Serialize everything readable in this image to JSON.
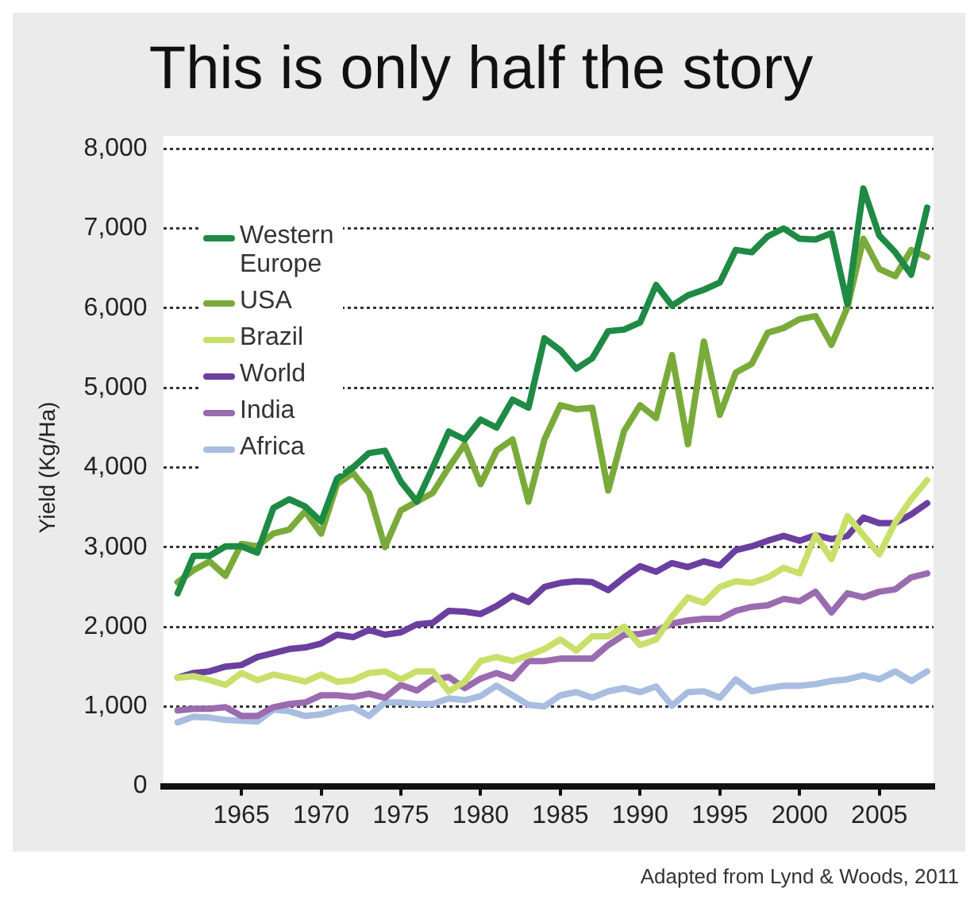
{
  "chart_data": {
    "type": "line",
    "title": "This is only half the story",
    "ylabel": "Yield (Kg/Ha)",
    "annotations": [
      "Adapted from Lynd & Woods, 2011"
    ],
    "x": [
      1961,
      1962,
      1963,
      1964,
      1965,
      1966,
      1967,
      1968,
      1969,
      1970,
      1971,
      1972,
      1973,
      1974,
      1975,
      1976,
      1977,
      1978,
      1979,
      1980,
      1981,
      1982,
      1983,
      1984,
      1985,
      1986,
      1987,
      1988,
      1989,
      1990,
      1991,
      1992,
      1993,
      1994,
      1995,
      1996,
      1997,
      1998,
      1999,
      2000,
      2001,
      2002,
      2003,
      2004,
      2005,
      2006,
      2007,
      2008
    ],
    "series": [
      {
        "name": "Western Europe",
        "color": "#1e8a44",
        "values": [
          2420,
          2890,
          2890,
          3010,
          3010,
          2930,
          3490,
          3600,
          3510,
          3320,
          3860,
          4000,
          4180,
          4210,
          3820,
          3570,
          4000,
          4450,
          4350,
          4600,
          4500,
          4850,
          4750,
          5620,
          5470,
          5240,
          5370,
          5710,
          5730,
          5820,
          6290,
          6030,
          6160,
          6230,
          6320,
          6730,
          6700,
          6900,
          7000,
          6870,
          6860,
          6940,
          6050,
          7500,
          6910,
          6700,
          6420,
          7260
        ]
      },
      {
        "name": "USA",
        "color": "#7aab3a",
        "values": [
          2560,
          2710,
          2820,
          2640,
          3040,
          3010,
          3170,
          3220,
          3450,
          3170,
          3790,
          3930,
          3680,
          3000,
          3460,
          3570,
          3680,
          4000,
          4290,
          3790,
          4210,
          4350,
          3570,
          4350,
          4780,
          4730,
          4750,
          3710,
          4460,
          4780,
          4620,
          5410,
          4290,
          5580,
          4660,
          5190,
          5300,
          5690,
          5750,
          5860,
          5900,
          5540,
          6010,
          6870,
          6490,
          6400,
          6730,
          6640
        ]
      },
      {
        "name": "Brazil",
        "color": "#c8e06a",
        "values": [
          1360,
          1380,
          1330,
          1270,
          1420,
          1330,
          1400,
          1360,
          1310,
          1400,
          1310,
          1330,
          1420,
          1440,
          1340,
          1440,
          1440,
          1190,
          1310,
          1570,
          1620,
          1570,
          1640,
          1720,
          1840,
          1700,
          1880,
          1880,
          2000,
          1770,
          1840,
          2130,
          2370,
          2300,
          2500,
          2570,
          2550,
          2620,
          2740,
          2670,
          3150,
          2850,
          3390,
          3150,
          2910,
          3310,
          3600,
          3840
        ]
      },
      {
        "name": "World",
        "color": "#6a3fa0",
        "values": [
          1360,
          1420,
          1440,
          1500,
          1520,
          1620,
          1670,
          1720,
          1740,
          1790,
          1900,
          1870,
          1960,
          1900,
          1930,
          2030,
          2050,
          2200,
          2190,
          2160,
          2260,
          2390,
          2310,
          2500,
          2550,
          2570,
          2560,
          2460,
          2620,
          2760,
          2690,
          2800,
          2750,
          2820,
          2770,
          2960,
          3010,
          3080,
          3140,
          3080,
          3150,
          3100,
          3140,
          3370,
          3300,
          3300,
          3410,
          3550
        ]
      },
      {
        "name": "India",
        "color": "#9b6bb0",
        "values": [
          950,
          970,
          970,
          990,
          880,
          880,
          990,
          1030,
          1050,
          1140,
          1140,
          1120,
          1160,
          1110,
          1270,
          1200,
          1340,
          1370,
          1230,
          1350,
          1420,
          1350,
          1570,
          1570,
          1600,
          1600,
          1600,
          1770,
          1900,
          1910,
          1950,
          2040,
          2080,
          2100,
          2100,
          2200,
          2250,
          2270,
          2350,
          2320,
          2440,
          2180,
          2420,
          2370,
          2440,
          2470,
          2620,
          2670
        ]
      },
      {
        "name": "Africa",
        "color": "#a8bde0",
        "values": [
          800,
          870,
          860,
          830,
          820,
          810,
          960,
          940,
          880,
          900,
          960,
          990,
          880,
          1050,
          1050,
          1030,
          1030,
          1100,
          1080,
          1130,
          1260,
          1140,
          1020,
          1000,
          1140,
          1180,
          1110,
          1190,
          1230,
          1180,
          1250,
          1010,
          1180,
          1190,
          1110,
          1340,
          1190,
          1230,
          1260,
          1260,
          1280,
          1320,
          1340,
          1390,
          1340,
          1440,
          1320,
          1440
        ]
      }
    ],
    "xlim": [
      1960.1,
      2008.4
    ],
    "xticks": [
      1965,
      1970,
      1975,
      1980,
      1985,
      1990,
      1995,
      2000,
      2005
    ],
    "ylim": [
      0,
      8000
    ],
    "yticks": [
      0,
      {
        "value": 1000,
        "label": "1,000"
      },
      {
        "value": 2000,
        "label": "2,000"
      },
      {
        "value": 3000,
        "label": "3,000"
      },
      {
        "value": 4000,
        "label": "4,000"
      },
      {
        "value": 5000,
        "label": "5,000"
      },
      {
        "value": 6000,
        "label": "6,000"
      },
      {
        "value": 7000,
        "label": "7,000"
      },
      {
        "value": 8000,
        "label": "8,000"
      }
    ],
    "grid": "y",
    "legend": "top left",
    "marker": "none",
    "line_style": "solid"
  }
}
